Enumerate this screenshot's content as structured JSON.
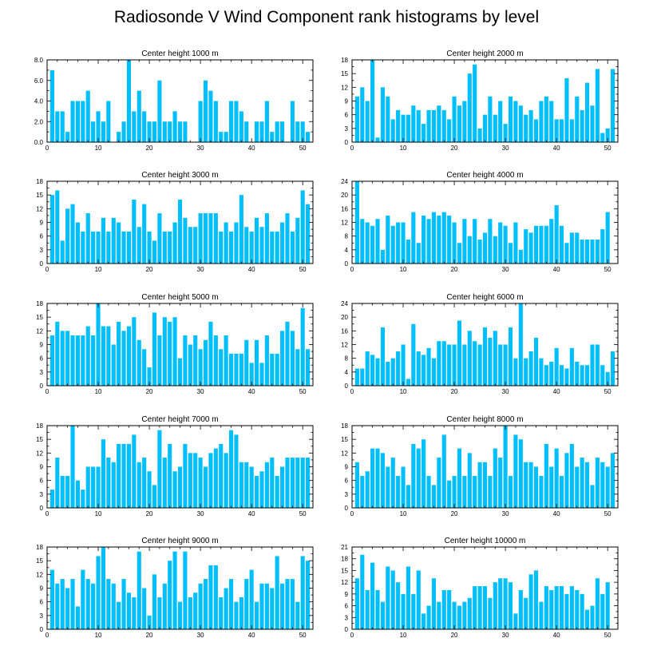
{
  "chart_data": {
    "title": "Radiosonde V Wind Component rank histograms by level",
    "type": "bar",
    "x_ticks": [
      0,
      10,
      20,
      30,
      40,
      50
    ],
    "xlim": [
      0,
      52
    ],
    "bar_color": "#00bfff",
    "panels": [
      {
        "title": "Center height 1000 m",
        "ylim": [
          0,
          8
        ],
        "y_ticks": [
          "0.0",
          "2.0",
          "4.0",
          "6.0",
          "8.0"
        ],
        "y_tick_values": [
          0,
          2,
          4,
          6,
          8
        ],
        "values": [
          7,
          3,
          3,
          1,
          4,
          4,
          4,
          5,
          2,
          3,
          2,
          4,
          0,
          1,
          2,
          8,
          3,
          5,
          3,
          2,
          2,
          6,
          2,
          2,
          3,
          2,
          2,
          0,
          0,
          4,
          6,
          5,
          4,
          1,
          1,
          4,
          4,
          3,
          2,
          0,
          2,
          2,
          4,
          1,
          2,
          2,
          0,
          4,
          2,
          2,
          1
        ]
      },
      {
        "title": "Center height 2000 m",
        "ylim": [
          0,
          18
        ],
        "y_ticks": [
          "0",
          "3",
          "6",
          "9",
          "12",
          "15",
          "18"
        ],
        "y_tick_values": [
          0,
          3,
          6,
          9,
          12,
          15,
          18
        ],
        "values": [
          10,
          12,
          9,
          18,
          1,
          12,
          10,
          5,
          7,
          6,
          6,
          8,
          7,
          4,
          7,
          7,
          8,
          7,
          5,
          10,
          8,
          9,
          15,
          17,
          3,
          6,
          10,
          6,
          9,
          4,
          10,
          9,
          8,
          6,
          7,
          5,
          9,
          10,
          9,
          5,
          5,
          14,
          5,
          10,
          7,
          13,
          8,
          16,
          2,
          3,
          16
        ]
      },
      {
        "title": "Center height 3000 m",
        "ylim": [
          0,
          18
        ],
        "y_ticks": [
          "0",
          "3",
          "6",
          "9",
          "12",
          "15",
          "18"
        ],
        "y_tick_values": [
          0,
          3,
          6,
          9,
          12,
          15,
          18
        ],
        "values": [
          15,
          16,
          5,
          12,
          13,
          9,
          7,
          11,
          7,
          7,
          10,
          7,
          10,
          9,
          7,
          7,
          14,
          8,
          13,
          7,
          5,
          11,
          7,
          7,
          9,
          14,
          10,
          8,
          8,
          11,
          11,
          11,
          11,
          7,
          9,
          7,
          9,
          15,
          8,
          7,
          10,
          8,
          11,
          7,
          7,
          9,
          11,
          7,
          10,
          16,
          13
        ]
      },
      {
        "title": "Center height 4000 m",
        "ylim": [
          0,
          24
        ],
        "y_ticks": [
          "0",
          "4",
          "8",
          "12",
          "16",
          "20",
          "24"
        ],
        "y_tick_values": [
          0,
          4,
          8,
          12,
          16,
          20,
          24
        ],
        "values": [
          24,
          13,
          12,
          11,
          13,
          4,
          14,
          11,
          12,
          12,
          7,
          15,
          6,
          14,
          13,
          15,
          14,
          15,
          14,
          12,
          6,
          13,
          8,
          13,
          7,
          9,
          13,
          8,
          12,
          11,
          6,
          12,
          4,
          10,
          9,
          11,
          11,
          11,
          13,
          17,
          11,
          6,
          9,
          9,
          7,
          7,
          7,
          7,
          10,
          15,
          0
        ]
      },
      {
        "title": "Center height 5000 m",
        "ylim": [
          0,
          18
        ],
        "y_ticks": [
          "0",
          "3",
          "6",
          "9",
          "12",
          "15",
          "18"
        ],
        "y_tick_values": [
          0,
          3,
          6,
          9,
          12,
          15,
          18
        ],
        "values": [
          11,
          14,
          12,
          12,
          11,
          11,
          11,
          13,
          11,
          18,
          13,
          13,
          9,
          14,
          12,
          13,
          15,
          10,
          8,
          4,
          16,
          11,
          15,
          14,
          15,
          6,
          11,
          9,
          11,
          8,
          10,
          14,
          11,
          8,
          11,
          7,
          7,
          7,
          10,
          5,
          10,
          5,
          11,
          7,
          7,
          12,
          14,
          12,
          8,
          17,
          8
        ]
      },
      {
        "title": "Center height 6000 m",
        "ylim": [
          0,
          24
        ],
        "y_ticks": [
          "0",
          "4",
          "8",
          "12",
          "16",
          "20",
          "24"
        ],
        "y_tick_values": [
          0,
          4,
          8,
          12,
          16,
          20,
          24
        ],
        "values": [
          5,
          5,
          10,
          9,
          8,
          17,
          7,
          8,
          10,
          12,
          2,
          18,
          10,
          9,
          11,
          8,
          13,
          13,
          12,
          12,
          19,
          12,
          16,
          13,
          12,
          17,
          14,
          16,
          12,
          12,
          17,
          8,
          24,
          8,
          10,
          14,
          8,
          6,
          7,
          11,
          6,
          5,
          11,
          7,
          6,
          6,
          12,
          12,
          6,
          4,
          10
        ]
      },
      {
        "title": "Center height 7000 m",
        "ylim": [
          0,
          18
        ],
        "y_ticks": [
          "0",
          "3",
          "6",
          "9",
          "12",
          "15",
          "18"
        ],
        "y_tick_values": [
          0,
          3,
          6,
          9,
          12,
          15,
          18
        ],
        "values": [
          4,
          11,
          7,
          7,
          18,
          6,
          4,
          9,
          9,
          9,
          15,
          11,
          10,
          14,
          14,
          14,
          16,
          10,
          11,
          8,
          5,
          17,
          11,
          14,
          8,
          9,
          14,
          12,
          12,
          11,
          9,
          12,
          13,
          14,
          12,
          17,
          16,
          10,
          10,
          9,
          7,
          8,
          10,
          11,
          7,
          9,
          11,
          11,
          11,
          11,
          11
        ]
      },
      {
        "title": "Center height 8000 m",
        "ylim": [
          0,
          18
        ],
        "y_ticks": [
          "0",
          "3",
          "6",
          "9",
          "12",
          "15",
          "18"
        ],
        "y_tick_values": [
          0,
          3,
          6,
          9,
          12,
          15,
          18
        ],
        "values": [
          10,
          7,
          8,
          13,
          13,
          12,
          9,
          11,
          7,
          9,
          5,
          14,
          13,
          15,
          7,
          5,
          11,
          16,
          6,
          7,
          13,
          7,
          12,
          7,
          10,
          10,
          7,
          13,
          11,
          18,
          7,
          16,
          15,
          10,
          10,
          9,
          7,
          14,
          9,
          13,
          7,
          12,
          14,
          9,
          11,
          10,
          5,
          11,
          10,
          9,
          12
        ]
      },
      {
        "title": "Center height 9000 m",
        "ylim": [
          0,
          18
        ],
        "y_ticks": [
          "0",
          "3",
          "6",
          "9",
          "12",
          "15",
          "18"
        ],
        "y_tick_values": [
          0,
          3,
          6,
          9,
          12,
          15,
          18
        ],
        "values": [
          13,
          10,
          11,
          9,
          11,
          5,
          13,
          11,
          10,
          16,
          18,
          11,
          10,
          6,
          11,
          8,
          7,
          17,
          9,
          3,
          12,
          7,
          10,
          15,
          17,
          6,
          17,
          7,
          8,
          10,
          11,
          14,
          14,
          7,
          9,
          11,
          6,
          7,
          11,
          13,
          6,
          10,
          10,
          9,
          16,
          10,
          11,
          11,
          6,
          16,
          15
        ]
      },
      {
        "title": "Center height 10000 m",
        "ylim": [
          0,
          21
        ],
        "y_ticks": [
          "0",
          "3",
          "6",
          "9",
          "12",
          "15",
          "18",
          "21"
        ],
        "y_tick_values": [
          0,
          3,
          6,
          9,
          12,
          15,
          18,
          21
        ],
        "values": [
          13,
          19,
          10,
          17,
          10,
          7,
          16,
          15,
          12,
          9,
          16,
          9,
          15,
          4,
          6,
          13,
          7,
          10,
          10,
          7,
          6,
          7,
          8,
          11,
          11,
          11,
          8,
          12,
          13,
          13,
          12,
          4,
          10,
          8,
          14,
          15,
          7,
          11,
          10,
          11,
          11,
          9,
          11,
          10,
          9,
          5,
          6,
          13,
          9,
          12,
          0
        ]
      }
    ]
  }
}
